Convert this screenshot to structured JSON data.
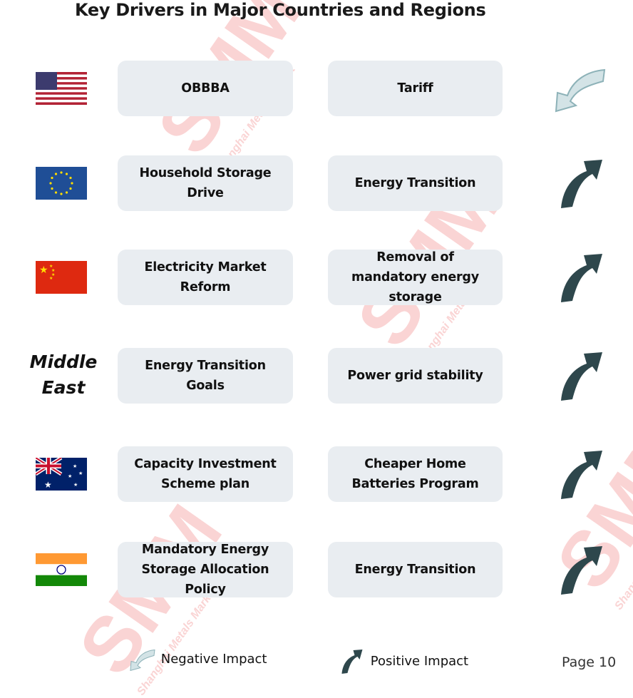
{
  "title": "Key Drivers in Major Countries and Regions",
  "watermark": {
    "logo": "SMM",
    "sub": "Shanghai Metals Market"
  },
  "colors": {
    "positive": "#2e474c",
    "negative_fill": "#d3e3e6",
    "negative_stroke": "#8db2b8",
    "box": "#e9edf1"
  },
  "rows": [
    {
      "region": "United States",
      "flag": "us-flag",
      "driver1": "OBBBA",
      "driver2": "Tariff",
      "impact": "negative"
    },
    {
      "region": "European Union",
      "flag": "eu-flag",
      "driver1": "Household Storage Drive",
      "driver2": "Energy Transition",
      "impact": "positive"
    },
    {
      "region": "China",
      "flag": "china-flag",
      "driver1": "Electricity Market Reform",
      "driver2": "Removal of mandatory energy storage",
      "impact": "positive"
    },
    {
      "region": "Middle East",
      "flag": null,
      "region_label": "Middle East",
      "driver1": "Energy Transition Goals",
      "driver2": "Power grid stability",
      "impact": "positive"
    },
    {
      "region": "Australia",
      "flag": "australia-flag",
      "driver1": "Capacity Investment Scheme plan",
      "driver2": "Cheaper Home Batteries Program",
      "impact": "positive"
    },
    {
      "region": "India",
      "flag": "india-flag",
      "driver1": "Mandatory Energy Storage Allocation Policy",
      "driver2": "Energy Transition",
      "impact": "positive"
    }
  ],
  "legend": {
    "negative": "Negative Impact",
    "positive": "Positive Impact"
  },
  "page": "Page 10"
}
